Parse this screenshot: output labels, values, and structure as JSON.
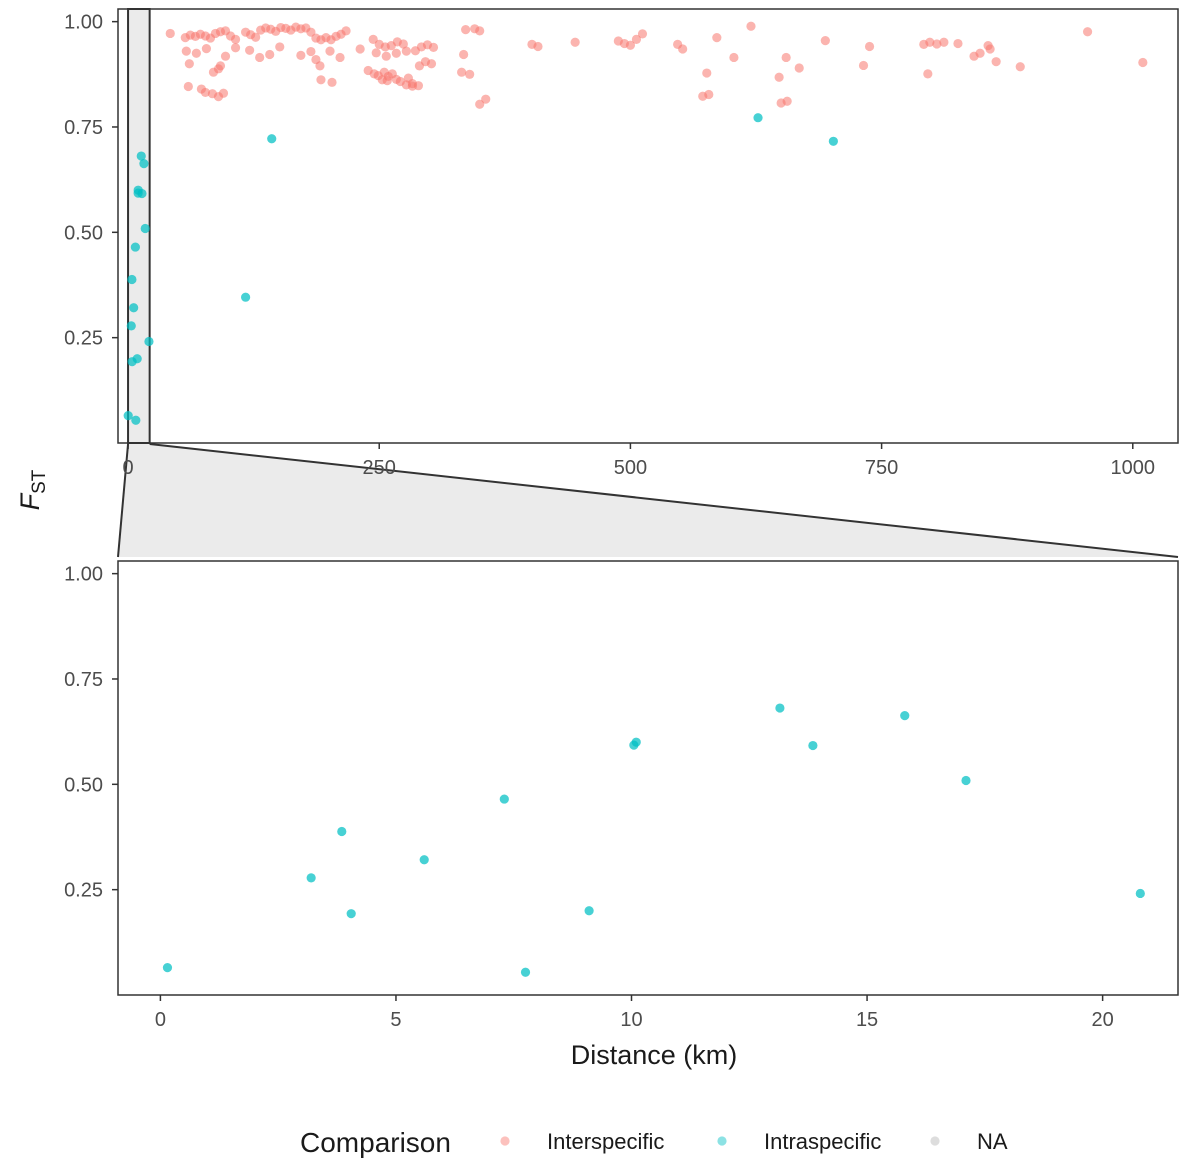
{
  "chart_data": [
    {
      "type": "scatter",
      "panel": "top",
      "xlim": [
        -10,
        1045
      ],
      "ylim": [
        0.0,
        1.03
      ],
      "x_ticks": [
        0,
        250,
        500,
        750,
        1000
      ],
      "x_tick_labels": [
        "0",
        "250",
        "500",
        "750",
        "1000"
      ],
      "y_ticks": [
        0.25,
        0.5,
        0.75,
        1.0
      ],
      "y_tick_labels": [
        "0.25",
        "0.50",
        "0.75",
        "1.00"
      ],
      "grid": false,
      "zoom_region": {
        "x": [
          0,
          21.5
        ]
      },
      "series": [
        {
          "name": "Interspecific",
          "color": "#F8766D",
          "points": [
            [
              42,
              0.972
            ],
            [
              57,
              0.962
            ],
            [
              62,
              0.968
            ],
            [
              67,
              0.965
            ],
            [
              72,
              0.97
            ],
            [
              77,
              0.966
            ],
            [
              82,
              0.961
            ],
            [
              87,
              0.972
            ],
            [
              92,
              0.976
            ],
            [
              97,
              0.978
            ],
            [
              102,
              0.966
            ],
            [
              107,
              0.958
            ],
            [
              117,
              0.975
            ],
            [
              122,
              0.969
            ],
            [
              127,
              0.963
            ],
            [
              132,
              0.98
            ],
            [
              137,
              0.985
            ],
            [
              142,
              0.982
            ],
            [
              147,
              0.977
            ],
            [
              152,
              0.986
            ],
            [
              157,
              0.984
            ],
            [
              162,
              0.98
            ],
            [
              167,
              0.987
            ],
            [
              172,
              0.983
            ],
            [
              177,
              0.985
            ],
            [
              182,
              0.975
            ],
            [
              187,
              0.961
            ],
            [
              192,
              0.957
            ],
            [
              197,
              0.962
            ],
            [
              202,
              0.957
            ],
            [
              207,
              0.965
            ],
            [
              212,
              0.97
            ],
            [
              217,
              0.978
            ],
            [
              244,
              0.958
            ],
            [
              250,
              0.946
            ],
            [
              256,
              0.94
            ],
            [
              262,
              0.943
            ],
            [
              268,
              0.952
            ],
            [
              274,
              0.947
            ],
            [
              286,
              0.931
            ],
            [
              292,
              0.94
            ],
            [
              298,
              0.945
            ],
            [
              304,
              0.939
            ],
            [
              336,
              0.981
            ],
            [
              345,
              0.983
            ],
            [
              350,
              0.978
            ],
            [
              402,
              0.946
            ],
            [
              408,
              0.941
            ],
            [
              445,
              0.951
            ],
            [
              488,
              0.954
            ],
            [
              494,
              0.948
            ],
            [
              500,
              0.944
            ],
            [
              506,
              0.958
            ],
            [
              512,
              0.971
            ],
            [
              547,
              0.946
            ],
            [
              552,
              0.935
            ],
            [
              586,
              0.962
            ],
            [
              620,
              0.989
            ],
            [
              694,
              0.955
            ],
            [
              738,
              0.941
            ],
            [
              792,
              0.946
            ],
            [
              798,
              0.951
            ],
            [
              805,
              0.947
            ],
            [
              812,
              0.951
            ],
            [
              826,
              0.948
            ],
            [
              856,
              0.943
            ],
            [
              955,
              0.976
            ],
            [
              58,
              0.93
            ],
            [
              68,
              0.925
            ],
            [
              78,
              0.936
            ],
            [
              92,
              0.895
            ],
            [
              97,
              0.918
            ],
            [
              107,
              0.938
            ],
            [
              121,
              0.932
            ],
            [
              131,
              0.915
            ],
            [
              141,
              0.922
            ],
            [
              151,
              0.94
            ],
            [
              172,
              0.92
            ],
            [
              182,
              0.929
            ],
            [
              187,
              0.91
            ],
            [
              191,
              0.895
            ],
            [
              201,
              0.93
            ],
            [
              211,
              0.915
            ],
            [
              231,
              0.935
            ],
            [
              247,
              0.926
            ],
            [
              257,
              0.918
            ],
            [
              267,
              0.925
            ],
            [
              277,
              0.93
            ],
            [
              290,
              0.895
            ],
            [
              296,
              0.905
            ],
            [
              302,
              0.9
            ],
            [
              334,
              0.922
            ],
            [
              603,
              0.915
            ],
            [
              655,
              0.915
            ],
            [
              668,
              0.89
            ],
            [
              732,
              0.896
            ],
            [
              842,
              0.918
            ],
            [
              848,
              0.925
            ],
            [
              858,
              0.935
            ],
            [
              864,
              0.905
            ],
            [
              888,
              0.893
            ],
            [
              1010,
              0.903
            ],
            [
              61,
              0.9
            ],
            [
              85,
              0.88
            ],
            [
              90,
              0.888
            ],
            [
              239,
              0.884
            ],
            [
              245,
              0.876
            ],
            [
              249,
              0.872
            ],
            [
              255,
              0.88
            ],
            [
              259,
              0.87
            ],
            [
              263,
              0.876
            ],
            [
              267,
              0.863
            ],
            [
              271,
              0.858
            ],
            [
              279,
              0.866
            ],
            [
              283,
              0.853
            ],
            [
              289,
              0.848
            ],
            [
              253,
              0.862
            ],
            [
              332,
              0.88
            ],
            [
              340,
              0.875
            ],
            [
              576,
              0.878
            ],
            [
              648,
              0.868
            ],
            [
              796,
              0.876
            ],
            [
              60,
              0.846
            ],
            [
              73,
              0.84
            ],
            [
              77,
              0.832
            ],
            [
              84,
              0.829
            ],
            [
              90,
              0.822
            ],
            [
              95,
              0.83
            ],
            [
              192,
              0.862
            ],
            [
              203,
              0.856
            ],
            [
              258,
              0.86
            ],
            [
              277,
              0.85
            ],
            [
              283,
              0.847
            ],
            [
              350,
              0.804
            ],
            [
              356,
              0.816
            ],
            [
              572,
              0.823
            ],
            [
              578,
              0.827
            ],
            [
              650,
              0.807
            ],
            [
              656,
              0.811
            ]
          ]
        },
        {
          "name": "Intraspecific",
          "color": "#00BFC4",
          "points": [
            [
              0.15,
              0.065
            ],
            [
              3.2,
              0.278
            ],
            [
              3.85,
              0.388
            ],
            [
              4.05,
              0.193
            ],
            [
              5.6,
              0.321
            ],
            [
              7.3,
              0.465
            ],
            [
              7.75,
              0.054
            ],
            [
              9.1,
              0.2
            ],
            [
              10.05,
              0.593
            ],
            [
              10.1,
              0.6
            ],
            [
              13.15,
              0.681
            ],
            [
              13.85,
              0.592
            ],
            [
              15.8,
              0.663
            ],
            [
              17.1,
              0.509
            ],
            [
              20.8,
              0.241
            ],
            [
              117,
              0.346
            ],
            [
              143,
              0.722
            ],
            [
              627,
              0.772
            ],
            [
              702,
              0.716
            ]
          ]
        }
      ]
    },
    {
      "type": "scatter",
      "panel": "bottom",
      "xlim": [
        -0.9,
        21.6
      ],
      "ylim": [
        0.0,
        1.03
      ],
      "x_ticks": [
        0,
        5,
        10,
        15,
        20
      ],
      "x_tick_labels": [
        "0",
        "5",
        "10",
        "15",
        "20"
      ],
      "y_ticks": [
        0.25,
        0.5,
        0.75,
        1.0
      ],
      "y_tick_labels": [
        "0.25",
        "0.50",
        "0.75",
        "1.00"
      ],
      "grid": false,
      "xlabel": "Distance (km)",
      "series": [
        {
          "name": "Intraspecific",
          "color": "#00BFC4",
          "points": [
            [
              0.15,
              0.065
            ],
            [
              3.2,
              0.278
            ],
            [
              3.85,
              0.388
            ],
            [
              4.05,
              0.193
            ],
            [
              5.6,
              0.321
            ],
            [
              7.3,
              0.465
            ],
            [
              7.75,
              0.054
            ],
            [
              9.1,
              0.2
            ],
            [
              10.05,
              0.593
            ],
            [
              10.1,
              0.6
            ],
            [
              13.15,
              0.681
            ],
            [
              13.85,
              0.592
            ],
            [
              15.8,
              0.663
            ],
            [
              17.1,
              0.509
            ],
            [
              20.8,
              0.241
            ]
          ]
        }
      ]
    }
  ],
  "ylabel": {
    "main": "F",
    "subscript": "ST"
  },
  "legend": {
    "title": "Comparison",
    "position": "bottom",
    "entries": [
      {
        "label": "Interspecific",
        "color": "#F8766D"
      },
      {
        "label": "Intraspecific",
        "color": "#00BFC4"
      },
      {
        "label": "NA",
        "color": "#B3B3B3"
      }
    ]
  }
}
